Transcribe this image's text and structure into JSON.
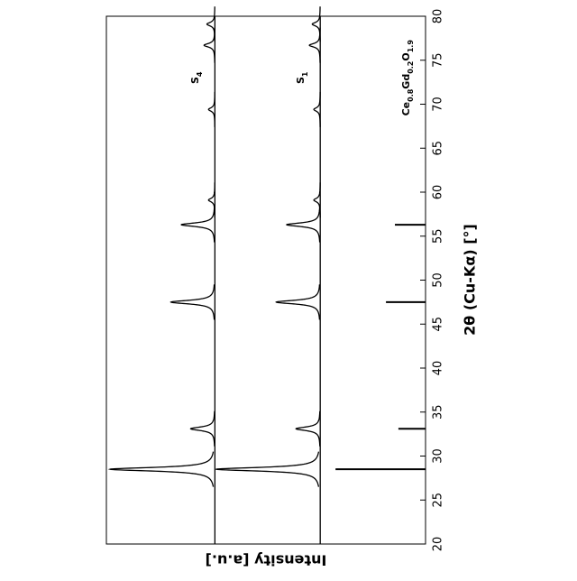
{
  "chart_data": {
    "type": "line",
    "xlabel": "2θ (Cu-Kα) [°]",
    "ylabel": "Intensity [a.u.]",
    "xlim": [
      20,
      80
    ],
    "xticks": [
      20,
      25,
      30,
      35,
      40,
      45,
      50,
      55,
      60,
      65,
      70,
      75,
      80
    ],
    "ylim": [
      0,
      100
    ],
    "series": [
      {
        "name": "S4",
        "mark": "profile",
        "color": "#000000",
        "x": [
          28.5,
          33.1,
          47.5,
          56.3,
          59.1,
          69.4,
          76.7,
          79.1
        ],
        "values": [
          32.8,
          7.6,
          13.8,
          10.5,
          2,
          2,
          3.4,
          2.5
        ]
      },
      {
        "name": "S1",
        "mark": "profile",
        "color": "#000000",
        "x": [
          28.5,
          33.1,
          47.5,
          56.3,
          59.1,
          69.4,
          76.7,
          79.1
        ],
        "values": [
          32.5,
          7.6,
          13.8,
          10.5,
          2,
          2,
          3.4,
          2.5
        ]
      },
      {
        "name": "Ce0.8Gd0.2O1.9",
        "mark": "stick",
        "color": "#000000",
        "x": [
          28.5,
          33.1,
          47.5,
          56.3
        ],
        "values": [
          28.2,
          8.5,
          12.4,
          9.6
        ]
      }
    ]
  }
}
